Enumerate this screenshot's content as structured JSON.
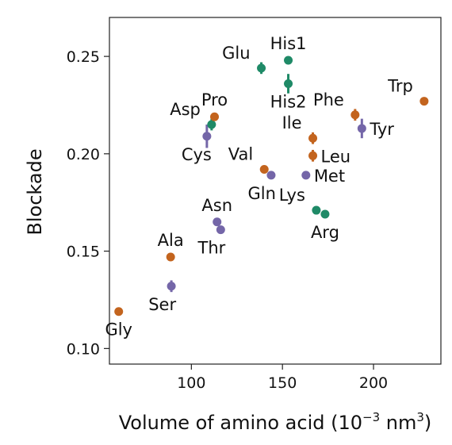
{
  "chart_data": {
    "type": "scatter",
    "xlabel": "Volume of amino acid (10",
    "xlabel_sup1": "−3",
    "xlabel_mid": " nm",
    "xlabel_sup2": "3",
    "xlabel_end": ")",
    "ylabel": "Blockade",
    "xlim": [
      55,
      237
    ],
    "ylim": [
      0.092,
      0.27
    ],
    "xticks": [
      100,
      150,
      200
    ],
    "xtick_labels": [
      "100",
      "150",
      "200"
    ],
    "yticks": [
      0.1,
      0.15,
      0.2,
      0.25
    ],
    "ytick_labels": [
      "0.10",
      "0.15",
      "0.20",
      "0.25"
    ],
    "grid": false,
    "colors": {
      "orange": "#c3641e",
      "purple": "#7466a8",
      "green": "#1f8a67"
    },
    "points": [
      {
        "label": "Gly",
        "x": 60.1,
        "y": 0.119,
        "err": 0.0,
        "color": "orange",
        "label_pos": "below"
      },
      {
        "label": "Ala",
        "x": 88.6,
        "y": 0.147,
        "err": 0.002,
        "color": "orange",
        "label_pos": "above"
      },
      {
        "label": "Ser",
        "x": 89.0,
        "y": 0.132,
        "err": 0.003,
        "color": "purple",
        "label_pos": "below-left"
      },
      {
        "label": "Cys",
        "x": 108.5,
        "y": 0.209,
        "err": 0.006,
        "color": "purple",
        "label_pos": "below-left"
      },
      {
        "label": "Asp",
        "x": 111.1,
        "y": 0.215,
        "err": 0.003,
        "color": "green",
        "label_pos": "above-left"
      },
      {
        "label": "Thr",
        "x": 116.1,
        "y": 0.161,
        "err": 0.002,
        "color": "purple",
        "label_pos": "below-left"
      },
      {
        "label": "Asn",
        "x": 114.1,
        "y": 0.165,
        "err": 0.002,
        "color": "purple",
        "label_pos": "above"
      },
      {
        "label": "Pro",
        "x": 112.7,
        "y": 0.219,
        "err": 0.002,
        "color": "orange",
        "label_pos": "above"
      },
      {
        "label": "Glu",
        "x": 138.4,
        "y": 0.244,
        "err": 0.003,
        "color": "green",
        "label_pos": "above-left"
      },
      {
        "label": "Gln",
        "x": 143.8,
        "y": 0.189,
        "err": 0.002,
        "color": "purple",
        "label_pos": "below-left"
      },
      {
        "label": "His1",
        "x": 153.2,
        "y": 0.248,
        "err": 0.0,
        "color": "green",
        "label_pos": "above"
      },
      {
        "label": "His2",
        "x": 153.2,
        "y": 0.236,
        "err": 0.005,
        "color": "green",
        "label_pos": "below"
      },
      {
        "label": "Val",
        "x": 140.0,
        "y": 0.192,
        "err": 0.002,
        "color": "orange",
        "label_pos": "above-left"
      },
      {
        "label": "Met",
        "x": 162.9,
        "y": 0.189,
        "err": 0.002,
        "color": "purple",
        "label_pos": "right"
      },
      {
        "label": "Ile",
        "x": 166.7,
        "y": 0.208,
        "err": 0.003,
        "color": "orange",
        "label_pos": "above-left"
      },
      {
        "label": "Leu",
        "x": 166.7,
        "y": 0.199,
        "err": 0.003,
        "color": "orange",
        "label_pos": "right"
      },
      {
        "label": "Lys",
        "x": 168.6,
        "y": 0.171,
        "err": 0.002,
        "color": "green",
        "label_pos": "above-left"
      },
      {
        "label": "Arg",
        "x": 173.4,
        "y": 0.169,
        "err": 0.002,
        "color": "green",
        "label_pos": "below"
      },
      {
        "label": "Phe",
        "x": 189.9,
        "y": 0.22,
        "err": 0.003,
        "color": "orange",
        "label_pos": "above-left"
      },
      {
        "label": "Tyr",
        "x": 193.6,
        "y": 0.213,
        "err": 0.005,
        "color": "purple",
        "label_pos": "right"
      },
      {
        "label": "Trp",
        "x": 227.8,
        "y": 0.227,
        "err": 0.002,
        "color": "orange",
        "label_pos": "above-left"
      }
    ]
  }
}
